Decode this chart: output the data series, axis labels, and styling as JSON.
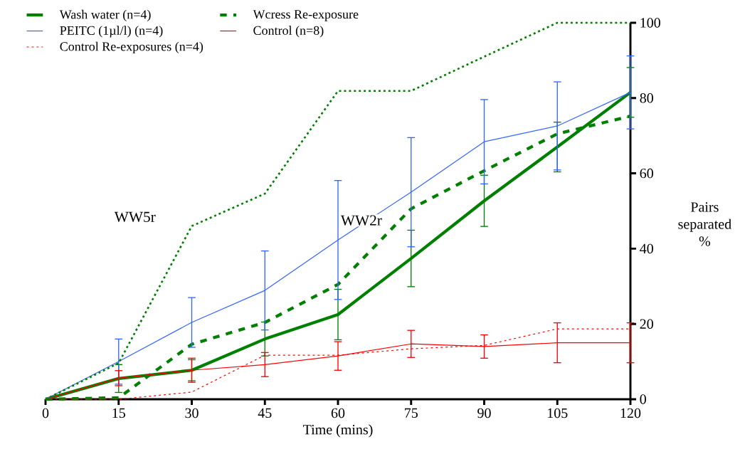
{
  "chart_data": {
    "type": "line",
    "xlabel": "Time (mins)",
    "ylabel": "Pairs separated %",
    "x": [
      0,
      15,
      30,
      45,
      60,
      75,
      90,
      105,
      120
    ],
    "xlim": [
      0,
      120
    ],
    "xticks": [
      0,
      15,
      30,
      45,
      60,
      75,
      90,
      105,
      120
    ],
    "ylim": [
      0,
      100
    ],
    "yticks": [
      0,
      20,
      40,
      60,
      80,
      100
    ],
    "grid": false,
    "legend": "top left",
    "marker": "none",
    "series": [
      {
        "name": "Wash water (n=4)",
        "color": "#008000",
        "line_style": "solid",
        "values": [
          0,
          5.5,
          7.7,
          16,
          22.5,
          37.4,
          52.7,
          67,
          81.5
        ],
        "errors": [
          null,
          3.7,
          2.8,
          4.5,
          6.7,
          7.5,
          6.8,
          6.6,
          6.6
        ]
      },
      {
        "name": "Wcress Re-exposure",
        "color": "#008000",
        "line_style": "dashed",
        "values": [
          0,
          0.4,
          14.6,
          20.4,
          30.5,
          50.6,
          60.7,
          70.5,
          75.2
        ]
      },
      {
        "name": "PEITC (1µl/l) (n=4)",
        "color": "#3366ff",
        "line_style": "solid",
        "values": [
          0,
          10,
          20.4,
          28.9,
          42.3,
          55,
          68.4,
          72.6,
          81.5
        ],
        "errors": [
          null,
          6,
          6.6,
          10.5,
          15.8,
          14.5,
          11.2,
          11.7,
          9.7
        ]
      },
      {
        "name": "Control (n=8)",
        "color": "#ff0000",
        "line_style": "solid",
        "values": [
          0,
          5.6,
          7.7,
          9.2,
          11.5,
          14.7,
          14,
          15,
          15
        ],
        "errors": [
          null,
          2,
          3.2,
          3.2,
          3.8,
          3.6,
          3.1,
          5.3,
          5.3
        ]
      },
      {
        "name": "Control Re-exposures (n=4)",
        "color": "#ff0000",
        "line_style": "dotted",
        "values": [
          0,
          0,
          1.9,
          11.7,
          11.7,
          13.4,
          14.3,
          18.7,
          18.7
        ]
      },
      {
        "color": "#008000",
        "line_style": "dotted",
        "values": [
          0,
          9.6,
          46,
          54.6,
          81.9,
          81.9,
          91,
          100,
          100
        ]
      }
    ],
    "annotations": [
      "WW5r",
      "WW2r"
    ]
  }
}
